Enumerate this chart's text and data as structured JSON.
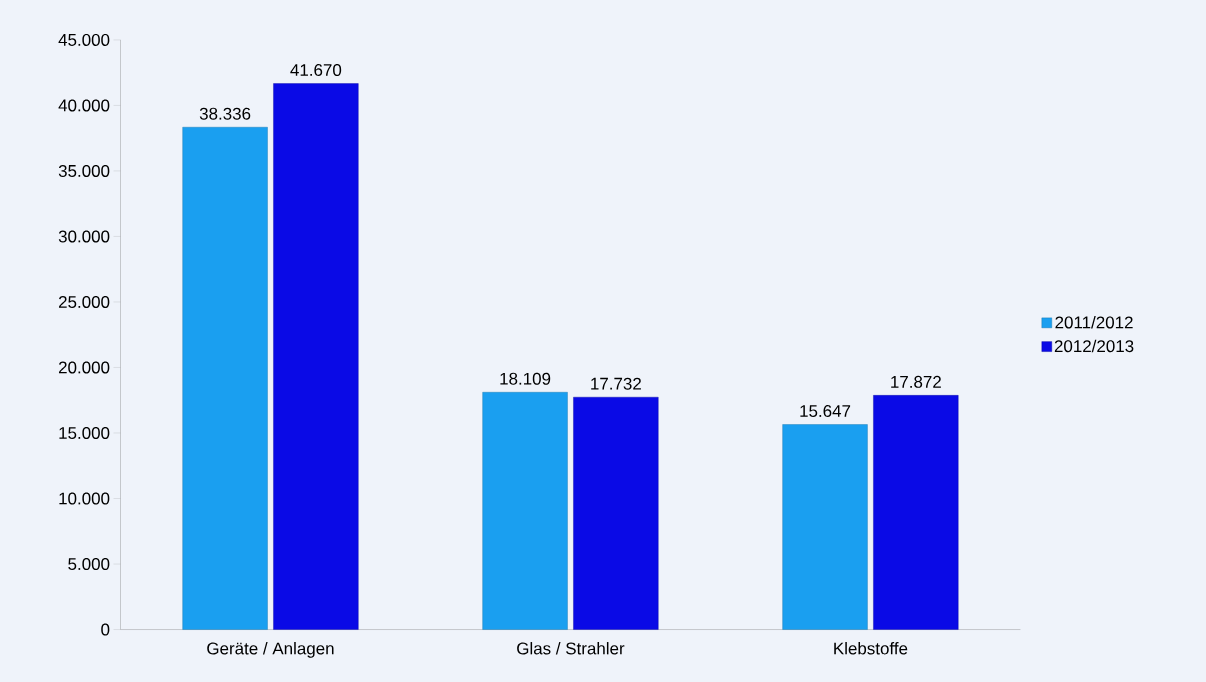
{
  "chart_data": {
    "type": "bar",
    "categories": [
      "Geräte / Anlagen",
      "Glas / Strahler",
      "Klebstoffe"
    ],
    "series": [
      {
        "name": "2011/2012",
        "color": "#1a9ff0",
        "values": [
          38336,
          18109,
          15647
        ],
        "value_labels": [
          "38.336",
          "18.109",
          "15.647"
        ]
      },
      {
        "name": "2012/2013",
        "color": "#0a0ae6",
        "values": [
          41670,
          17732,
          17872
        ],
        "value_labels": [
          "41.670",
          "17.732",
          "17.872"
        ]
      }
    ],
    "ylim": [
      0,
      45000
    ],
    "yticks": [
      0,
      {
        "value": 5000,
        "label": "5.000"
      },
      {
        "value": 10000,
        "label": "10.000"
      },
      {
        "value": 15000,
        "label": "15.000"
      },
      {
        "value": 20000,
        "label": "20.000"
      },
      {
        "value": 25000,
        "label": "25.000"
      },
      {
        "value": 30000,
        "label": "30.000"
      },
      {
        "value": 35000,
        "label": "35.000"
      },
      {
        "value": 40000,
        "label": "40.000"
      },
      {
        "value": 45000,
        "label": "45.000"
      }
    ],
    "legend": "right"
  }
}
